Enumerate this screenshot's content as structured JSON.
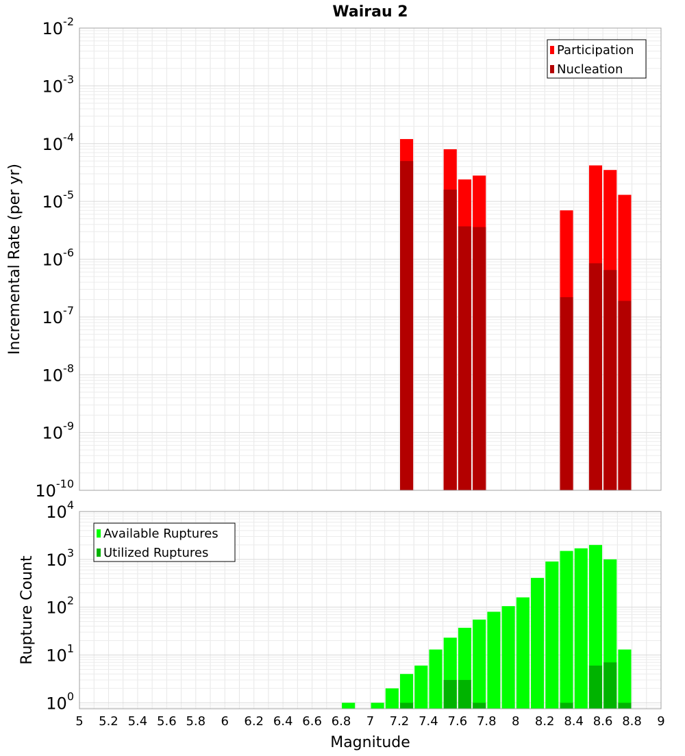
{
  "chart_data": [
    {
      "type": "bar",
      "title": "Wairau 2",
      "xlabel": "",
      "ylabel": "Incremental Rate (per yr)",
      "yscale": "log",
      "xlim": [
        5,
        9
      ],
      "ylim": [
        1e-10,
        0.01
      ],
      "ytick_exponents": [
        "-10",
        "-9",
        "-8",
        "-7",
        "-6",
        "-5",
        "-4",
        "-3",
        "-2"
      ],
      "grid": true,
      "legend_position": "top-right",
      "bar_width": 0.09,
      "series": [
        {
          "name": "Participation",
          "color": "#ff0000",
          "points": [
            [
              7.25,
              0.00012
            ],
            [
              7.55,
              8e-05
            ],
            [
              7.65,
              2.4e-05
            ],
            [
              7.75,
              2.8e-05
            ],
            [
              8.35,
              7e-06
            ],
            [
              8.55,
              4.2e-05
            ],
            [
              8.65,
              3.5e-05
            ],
            [
              8.75,
              1.3e-05
            ]
          ]
        },
        {
          "name": "Nucleation",
          "color": "#b30000",
          "points": [
            [
              7.25,
              5e-05
            ],
            [
              7.55,
              1.6e-05
            ],
            [
              7.65,
              3.7e-06
            ],
            [
              7.75,
              3.6e-06
            ],
            [
              8.35,
              2.2e-07
            ],
            [
              8.55,
              8.5e-07
            ],
            [
              8.65,
              6.5e-07
            ],
            [
              8.75,
              1.9e-07
            ]
          ]
        }
      ]
    },
    {
      "type": "bar",
      "title": "",
      "xlabel": "Magnitude",
      "ylabel": "Rupture Count",
      "yscale": "log",
      "xlim": [
        5,
        9
      ],
      "ylim": [
        0.75,
        10000
      ],
      "ytick_exponents": [
        "0",
        "1",
        "2",
        "3",
        "4"
      ],
      "xticks": [
        "5",
        "5.2",
        "5.4",
        "5.6",
        "5.8",
        "6",
        "6.2",
        "6.4",
        "6.6",
        "6.8",
        "7",
        "7.2",
        "7.4",
        "7.6",
        "7.8",
        "8",
        "8.2",
        "8.4",
        "8.6",
        "8.8",
        "9"
      ],
      "grid": true,
      "legend_position": "top-left",
      "bar_width": 0.09,
      "series": [
        {
          "name": "Available Ruptures",
          "color": "#00ff00",
          "points": [
            [
              6.85,
              1
            ],
            [
              7.05,
              1
            ],
            [
              7.15,
              2
            ],
            [
              7.25,
              4
            ],
            [
              7.35,
              6
            ],
            [
              7.45,
              13
            ],
            [
              7.55,
              23
            ],
            [
              7.65,
              37
            ],
            [
              7.75,
              55
            ],
            [
              7.85,
              80
            ],
            [
              7.95,
              105
            ],
            [
              8.05,
              160
            ],
            [
              8.15,
              410
            ],
            [
              8.25,
              900
            ],
            [
              8.35,
              1500
            ],
            [
              8.45,
              1700
            ],
            [
              8.55,
              2000
            ],
            [
              8.65,
              1000
            ],
            [
              8.75,
              13
            ]
          ]
        },
        {
          "name": "Utilized Ruptures",
          "color": "#00b300",
          "points": [
            [
              7.25,
              1
            ],
            [
              7.55,
              3
            ],
            [
              7.65,
              3
            ],
            [
              7.75,
              1
            ],
            [
              8.35,
              1
            ],
            [
              8.55,
              6
            ],
            [
              8.65,
              7
            ],
            [
              8.75,
              1
            ]
          ]
        }
      ]
    }
  ]
}
